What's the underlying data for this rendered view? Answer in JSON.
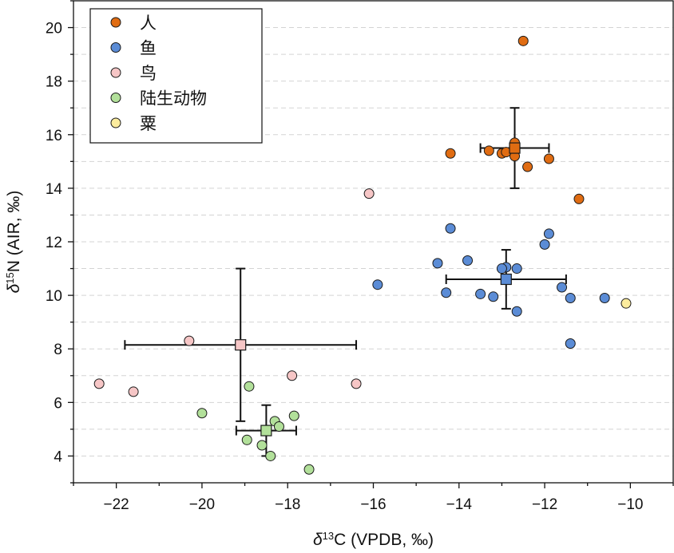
{
  "chart_data": {
    "type": "scatter",
    "xlabel": {
      "prefix": "δ",
      "sup": "13",
      "rest": "C (VPDB, ‰)"
    },
    "ylabel": {
      "prefix": "δ",
      "sup": "15",
      "rest": "N (AIR, ‰)"
    },
    "xlim": [
      -23,
      -9
    ],
    "ylim": [
      3,
      21
    ],
    "xticks": [
      -22,
      -20,
      -18,
      -16,
      -14,
      -12,
      -10
    ],
    "yticks": [
      4,
      6,
      8,
      10,
      12,
      14,
      16,
      18,
      20
    ],
    "grid": "horizontal dashed",
    "legend_position": "top-left",
    "series": [
      {
        "name": "人",
        "color": "#e06c12",
        "points": [
          [
            -12.5,
            19.5
          ],
          [
            -12.7,
            15.7
          ],
          [
            -12.7,
            15.5
          ],
          [
            -12.7,
            15.2
          ],
          [
            -13.3,
            15.4
          ],
          [
            -13.0,
            15.3
          ],
          [
            -12.9,
            15.35
          ],
          [
            -14.2,
            15.3
          ],
          [
            -11.9,
            15.1
          ],
          [
            -12.4,
            14.8
          ],
          [
            -11.2,
            13.6
          ]
        ],
        "mean": {
          "x": -12.7,
          "y": 15.5,
          "xerr_low": -13.5,
          "xerr_high": -11.9,
          "yerr_low": 14.0,
          "yerr_high": 17.0
        }
      },
      {
        "name": "鱼",
        "color": "#5b8cd6",
        "points": [
          [
            -14.2,
            12.5
          ],
          [
            -11.9,
            12.3
          ],
          [
            -12.0,
            11.9
          ],
          [
            -13.8,
            11.3
          ],
          [
            -14.5,
            11.2
          ],
          [
            -12.9,
            11.05
          ],
          [
            -13.0,
            11.0
          ],
          [
            -12.65,
            11.0
          ],
          [
            -15.9,
            10.4
          ],
          [
            -11.6,
            10.3
          ],
          [
            -14.3,
            10.1
          ],
          [
            -13.5,
            10.05
          ],
          [
            -13.2,
            9.95
          ],
          [
            -11.4,
            9.9
          ],
          [
            -10.6,
            9.9
          ],
          [
            -12.65,
            9.4
          ],
          [
            -11.4,
            8.2
          ]
        ],
        "mean": {
          "x": -12.9,
          "y": 10.6,
          "xerr_low": -14.3,
          "xerr_high": -11.5,
          "yerr_low": 9.5,
          "yerr_high": 11.7
        }
      },
      {
        "name": "鸟",
        "color": "#f6c6c6",
        "points": [
          [
            -16.1,
            13.8
          ],
          [
            -20.3,
            8.3
          ],
          [
            -17.9,
            7.0
          ],
          [
            -22.4,
            6.7
          ],
          [
            -16.4,
            6.7
          ],
          [
            -21.6,
            6.4
          ]
        ],
        "mean": {
          "x": -19.1,
          "y": 8.15,
          "xerr_low": -21.8,
          "xerr_high": -16.4,
          "yerr_low": 5.3,
          "yerr_high": 11.0
        }
      },
      {
        "name": "陆生动物",
        "color": "#b2e09a",
        "points": [
          [
            -18.9,
            6.6
          ],
          [
            -20.0,
            5.6
          ],
          [
            -17.85,
            5.5
          ],
          [
            -18.3,
            5.3
          ],
          [
            -18.2,
            5.1
          ],
          [
            -18.5,
            4.95
          ],
          [
            -18.95,
            4.6
          ],
          [
            -18.6,
            4.4
          ],
          [
            -18.4,
            4.0
          ],
          [
            -17.5,
            3.5
          ]
        ],
        "mean": {
          "x": -18.5,
          "y": 4.95,
          "xerr_low": -19.2,
          "xerr_high": -17.8,
          "yerr_low": 4.0,
          "yerr_high": 5.9
        }
      },
      {
        "name": "粟",
        "color": "#fcec9e",
        "points": [
          [
            -10.1,
            9.7
          ]
        ]
      }
    ]
  }
}
